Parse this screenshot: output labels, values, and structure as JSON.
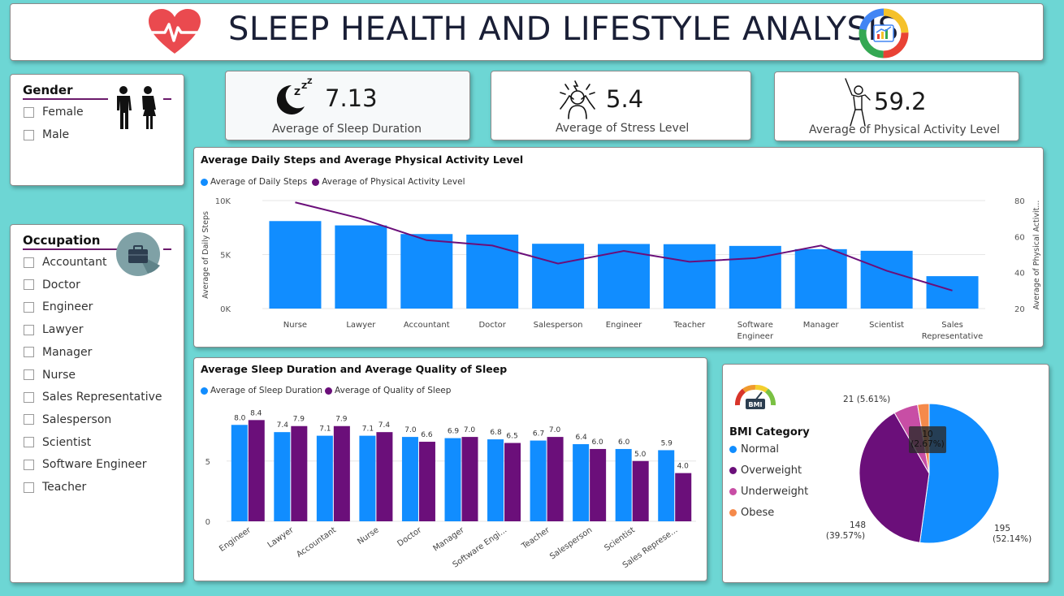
{
  "header": {
    "title": "SLEEP HEALTH AND LIFESTYLE ANALYSIS",
    "heart_icon": "heart-pulse-icon",
    "chart_logo_icon": "donut-chart-logo-icon"
  },
  "gender_slicer": {
    "title": "Gender",
    "items": [
      "Female",
      "Male"
    ],
    "icon": "people-icon"
  },
  "occupation_slicer": {
    "title": "Occupation",
    "items": [
      "Accountant",
      "Doctor",
      "Engineer",
      "Lawyer",
      "Manager",
      "Nurse",
      "Sales Representative",
      "Salesperson",
      "Scientist",
      "Software Engineer",
      "Teacher"
    ],
    "icon": "briefcase-icon"
  },
  "kpis": [
    {
      "value": "7.13",
      "label": "Average of Sleep Duration",
      "icon": "moon-sleep-icon"
    },
    {
      "value": "5.4",
      "label": "Average of Stress Level",
      "icon": "stress-icon"
    },
    {
      "value": "59.2",
      "label": "Average of Physical Activity Level",
      "icon": "exercise-icon"
    }
  ],
  "colors": {
    "blue": "#118dff",
    "purple": "#6b0f7a",
    "pink": "#c84ea5",
    "orange": "#f58a4b"
  },
  "chart_data": [
    {
      "type": "bar",
      "title": "Average Daily Steps and Average Physical Activity Level",
      "legend": [
        "Average of Daily Steps",
        "Average of Physical Activity Level"
      ],
      "ylabel": "Average of Daily Steps",
      "y2label": "Average of Physical Activit...",
      "y_ticks": [
        "0K",
        "5K",
        "10K"
      ],
      "y2_ticks": [
        "20",
        "40",
        "60",
        "80"
      ],
      "ylim": [
        0,
        10000
      ],
      "y2lim": [
        20,
        80
      ],
      "categories": [
        "Nurse",
        "Lawyer",
        "Accountant",
        "Doctor",
        "Salesperson",
        "Engineer",
        "Teacher",
        "Software Engineer",
        "Manager",
        "Scientist",
        "Sales Representative"
      ],
      "category_lines": [
        [
          "Nurse"
        ],
        [
          "Lawyer"
        ],
        [
          "Accountant"
        ],
        [
          "Doctor"
        ],
        [
          "Salesperson"
        ],
        [
          "Engineer"
        ],
        [
          "Teacher"
        ],
        [
          "Software",
          "Engineer"
        ],
        [
          "Manager"
        ],
        [
          "Scientist"
        ],
        [
          "Sales",
          "Representative"
        ]
      ],
      "series": [
        {
          "name": "Average of Daily Steps",
          "values": [
            8100,
            7700,
            6900,
            6850,
            6000,
            5980,
            5960,
            5800,
            5500,
            5350,
            3000
          ]
        },
        {
          "name": "Average of Physical Activity Level",
          "values": [
            79,
            70,
            58,
            55,
            45,
            52,
            46,
            48,
            55,
            41,
            30
          ]
        }
      ]
    },
    {
      "type": "bar",
      "title": "Average Sleep Duration and Average Quality of Sleep",
      "legend": [
        "Average of Sleep Duration",
        "Average of Quality of Sleep"
      ],
      "y_ticks": [
        "0",
        "5"
      ],
      "ylim": [
        0,
        9.5
      ],
      "categories": [
        "Engineer",
        "Lawyer",
        "Accountant",
        "Nurse",
        "Doctor",
        "Manager",
        "Software Engi...",
        "Teacher",
        "Salesperson",
        "Scientist",
        "Sales Represe..."
      ],
      "series": [
        {
          "name": "Average of Sleep Duration",
          "values": [
            8.0,
            7.4,
            7.1,
            7.1,
            7.0,
            6.9,
            6.8,
            6.7,
            6.4,
            6.0,
            5.9
          ],
          "labels": [
            "8.0",
            "7.4",
            "7.1",
            "7.1",
            "7.0",
            "6.9",
            "6.8",
            "6.7",
            "6.4",
            "6.0",
            "5.9"
          ]
        },
        {
          "name": "Average of Quality of Sleep",
          "values": [
            8.4,
            7.9,
            7.9,
            7.4,
            6.6,
            7.0,
            6.5,
            7.0,
            6.0,
            5.0,
            4.0
          ],
          "labels": [
            "8.4",
            "7.9",
            "7.9",
            "7.4",
            "6.6",
            "7.0",
            "6.5",
            "7.0",
            "6.0",
            "5.0",
            "4.0"
          ]
        }
      ]
    },
    {
      "type": "pie",
      "legend_title": "BMI Category",
      "categories": [
        "Normal",
        "Overweight",
        "Underweight",
        "Obese"
      ],
      "values": [
        195,
        148,
        21,
        10
      ],
      "labels": [
        "195",
        "148",
        "21 (5.61%)",
        "10"
      ],
      "percent_labels": [
        "(52.14%)",
        "(39.57%)",
        "",
        "(2.67%)"
      ],
      "icon": "bmi-gauge-icon"
    }
  ]
}
